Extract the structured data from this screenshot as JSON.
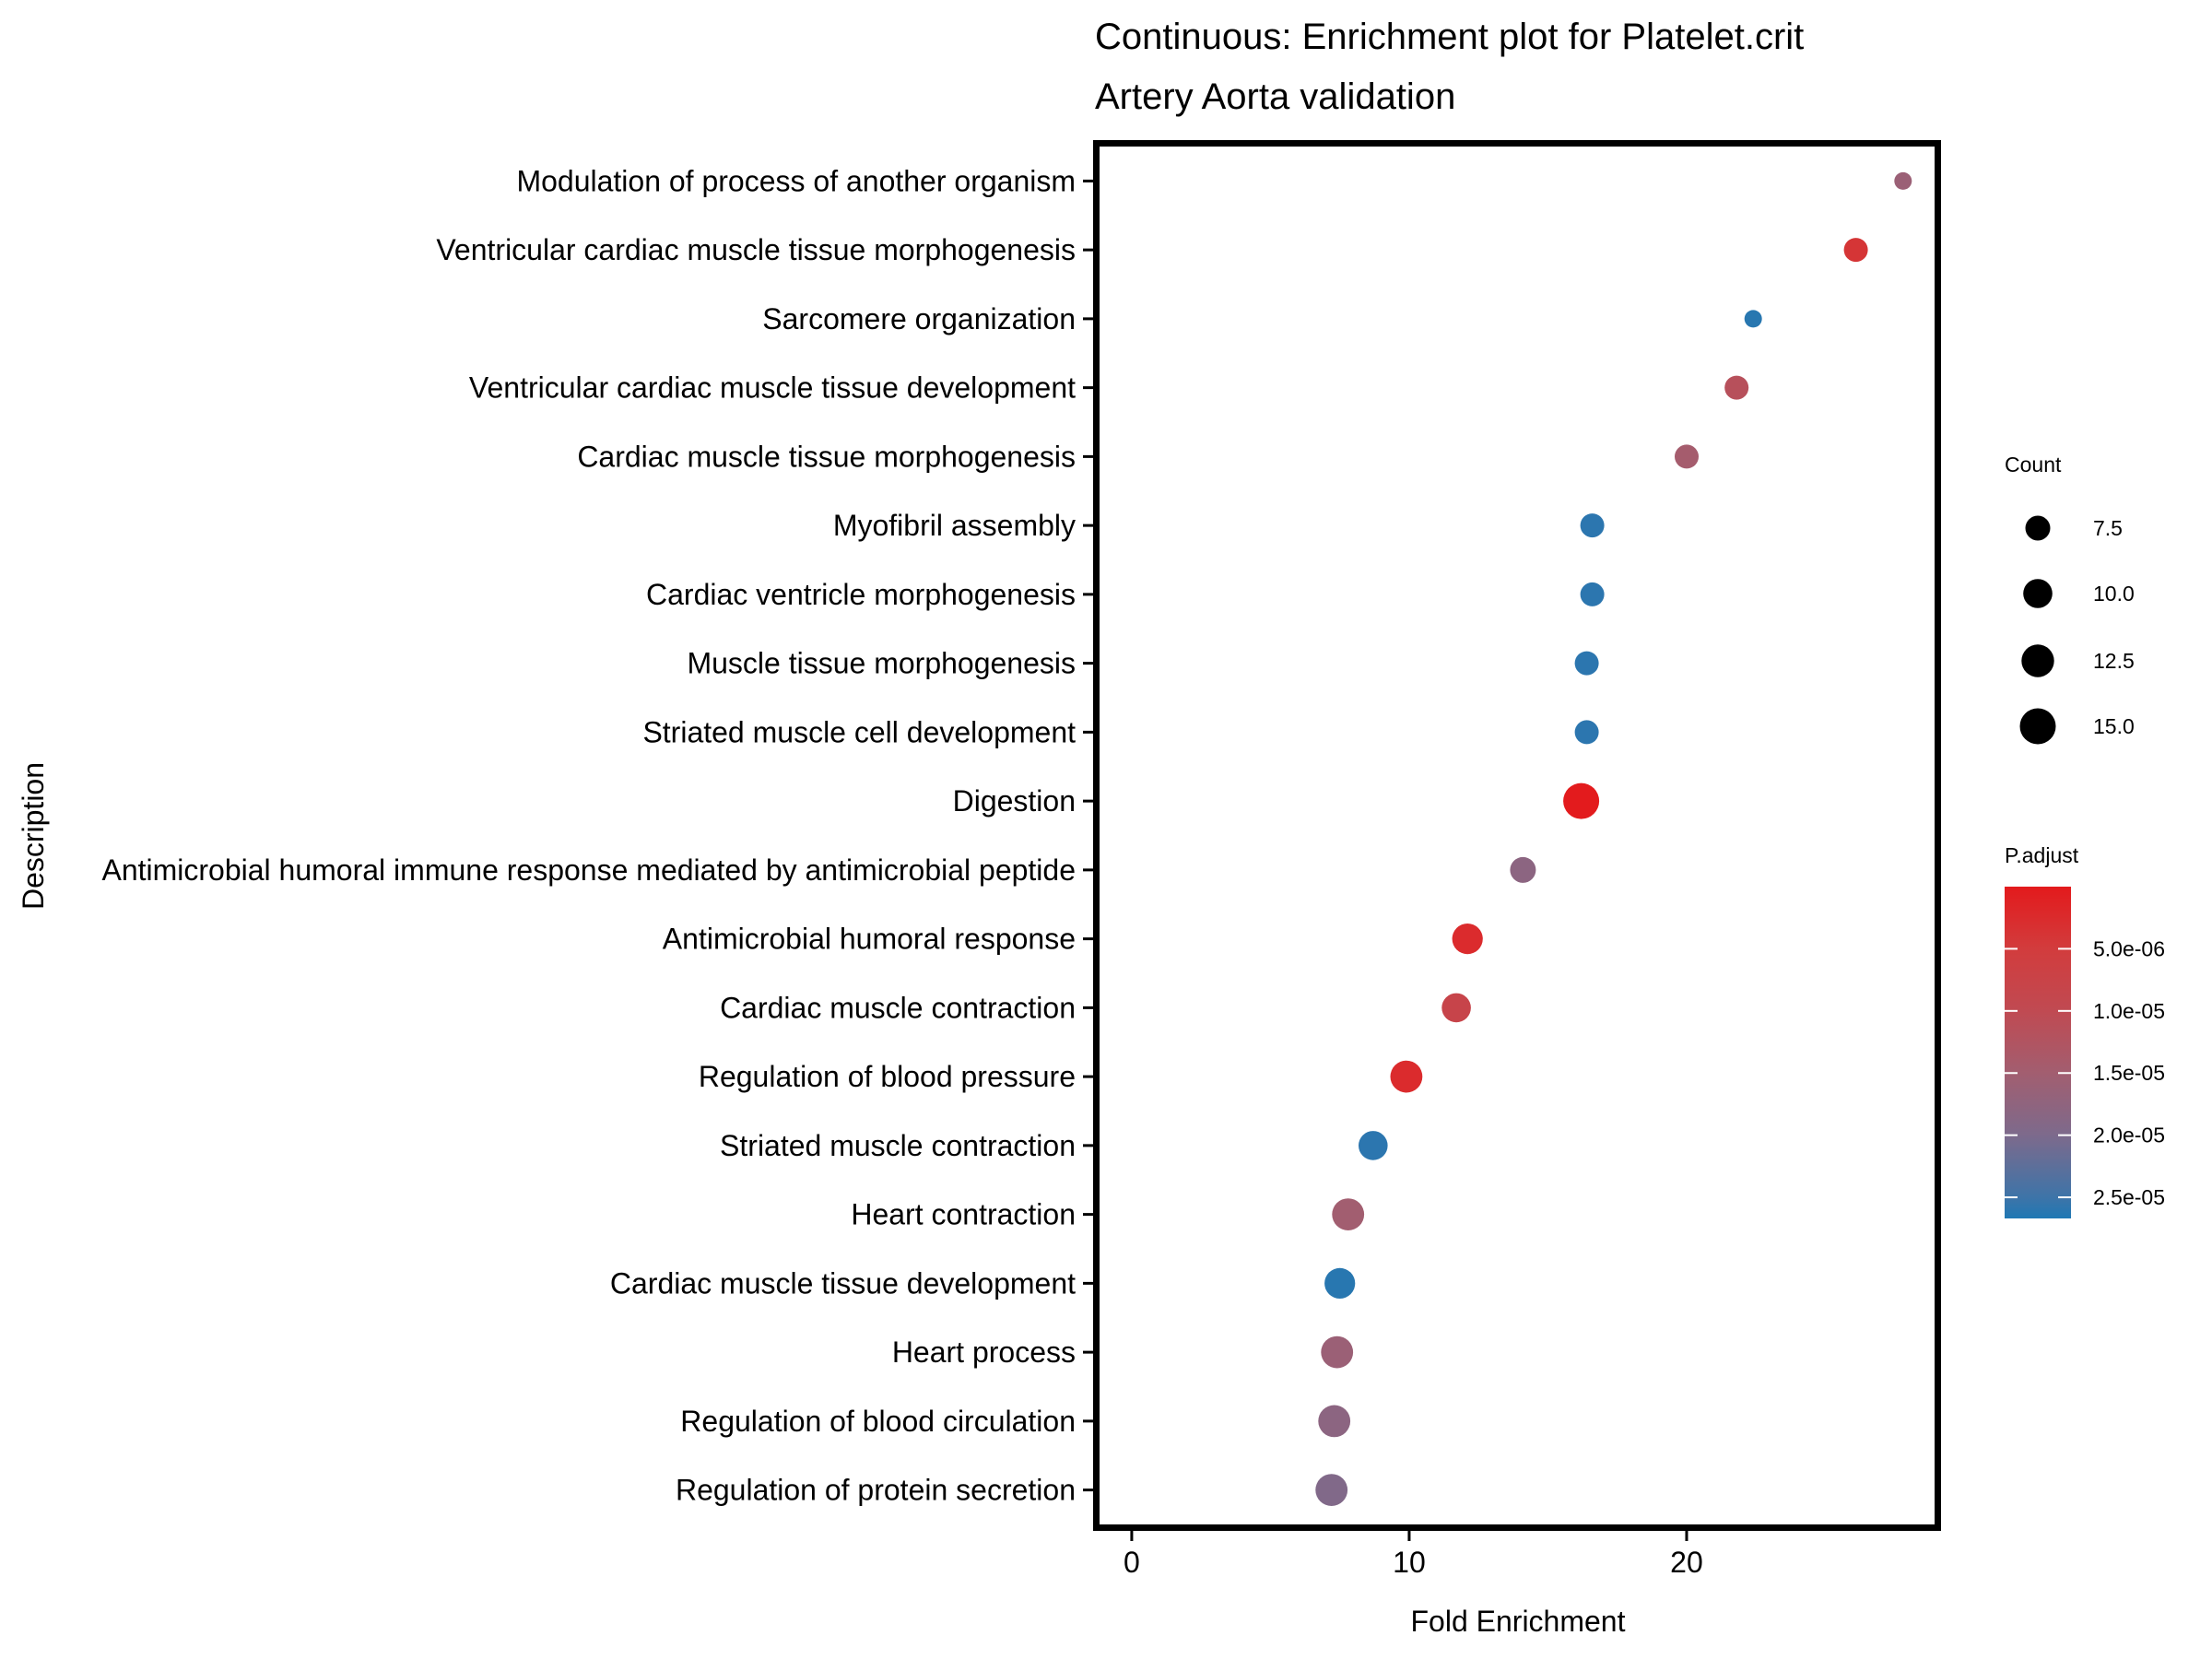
{
  "chart_data": {
    "type": "scatter",
    "title": "Continuous: Enrichment plot for Platelet.crit",
    "subtitle": "Artery Aorta validation",
    "xlabel": "Fold Enrichment",
    "ylabel": "Description",
    "xlim": [
      -1.16,
      28.97
    ],
    "x_ticks": [
      0,
      10,
      20
    ],
    "x_tick_labels": [
      "0",
      "10",
      "20"
    ],
    "grid": false,
    "categories": [
      "Modulation of process of another organism",
      "Ventricular cardiac muscle tissue morphogenesis",
      "Sarcomere organization",
      "Ventricular cardiac muscle tissue development",
      "Cardiac muscle tissue morphogenesis",
      "Myofibril assembly",
      "Cardiac ventricle morphogenesis",
      "Muscle tissue morphogenesis",
      "Striated muscle cell development",
      "Digestion",
      "Antimicrobial humoral immune response mediated by antimicrobial peptide",
      "Antimicrobial humoral response",
      "Cardiac muscle contraction",
      "Regulation of blood pressure",
      "Striated muscle contraction",
      "Heart contraction",
      "Cardiac muscle tissue development",
      "Heart process",
      "Regulation of blood circulation",
      "Regulation of protein secretion"
    ],
    "points": [
      {
        "description": "Modulation of process of another organism",
        "fold_enrichment": 27.8,
        "count": 4,
        "p_adjust": 1.6e-05
      },
      {
        "description": "Ventricular cardiac muscle tissue morphogenesis",
        "fold_enrichment": 26.1,
        "count": 7,
        "p_adjust": 4e-06
      },
      {
        "description": "Sarcomere organization",
        "fold_enrichment": 22.4,
        "count": 4,
        "p_adjust": 2.62e-05
      },
      {
        "description": "Ventricular cardiac muscle tissue development",
        "fold_enrichment": 21.8,
        "count": 7,
        "p_adjust": 1.15e-05
      },
      {
        "description": "Cardiac muscle tissue morphogenesis",
        "fold_enrichment": 20.0,
        "count": 7,
        "p_adjust": 1.45e-05
      },
      {
        "description": "Myofibril assembly",
        "fold_enrichment": 16.6,
        "count": 7,
        "p_adjust": 2.6e-05
      },
      {
        "description": "Cardiac ventricle morphogenesis",
        "fold_enrichment": 16.6,
        "count": 7,
        "p_adjust": 2.6e-05
      },
      {
        "description": "Muscle tissue morphogenesis",
        "fold_enrichment": 16.4,
        "count": 7,
        "p_adjust": 2.6e-05
      },
      {
        "description": "Striated muscle cell development",
        "fold_enrichment": 16.4,
        "count": 7,
        "p_adjust": 2.6e-05
      },
      {
        "description": "Digestion",
        "fold_enrichment": 16.2,
        "count": 15,
        "p_adjust": 1e-07
      },
      {
        "description": "Antimicrobial humoral immune response mediated by antimicrobial peptide",
        "fold_enrichment": 14.1,
        "count": 8,
        "p_adjust": 1.8e-05
      },
      {
        "description": "Antimicrobial humoral response",
        "fold_enrichment": 12.1,
        "count": 11,
        "p_adjust": 2.5e-06
      },
      {
        "description": "Cardiac muscle contraction",
        "fold_enrichment": 11.7,
        "count": 10,
        "p_adjust": 8e-06
      },
      {
        "description": "Regulation of blood pressure",
        "fold_enrichment": 9.9,
        "count": 12,
        "p_adjust": 2.5e-06
      },
      {
        "description": "Striated muscle contraction",
        "fold_enrichment": 8.7,
        "count": 10,
        "p_adjust": 2.6e-05
      },
      {
        "description": "Heart contraction",
        "fold_enrichment": 7.8,
        "count": 12,
        "p_adjust": 1.5e-05
      },
      {
        "description": "Cardiac muscle tissue development",
        "fold_enrichment": 7.5,
        "count": 11,
        "p_adjust": 2.62e-05
      },
      {
        "description": "Heart process",
        "fold_enrichment": 7.4,
        "count": 12,
        "p_adjust": 1.6e-05
      },
      {
        "description": "Regulation of blood circulation",
        "fold_enrichment": 7.3,
        "count": 12,
        "p_adjust": 1.8e-05
      },
      {
        "description": "Regulation of protein secretion",
        "fold_enrichment": 7.2,
        "count": 12,
        "p_adjust": 1.95e-05
      }
    ],
    "size_legend": {
      "title": "Count",
      "position": "right",
      "breaks": [
        7.5,
        10,
        12.5,
        15
      ],
      "labels": [
        "7.5",
        "10.0",
        "12.5",
        "15.0"
      ],
      "key_color": "#000000"
    },
    "color_legend": {
      "title": "P.adjust",
      "position": "right",
      "limits": [
        0,
        2.67e-05
      ],
      "breaks": [
        5e-06,
        1e-05,
        1.5e-05,
        2e-05,
        2.5e-05
      ],
      "labels": [
        "5.0e-06",
        "1.0e-05",
        "1.5e-05",
        "2.0e-05",
        "2.5e-05"
      ],
      "stops": [
        {
          "p": 0,
          "color": "#e31a1c"
        },
        {
          "p": 5e-06,
          "color": "#d23c3d"
        },
        {
          "p": 1e-05,
          "color": "#c04a52"
        },
        {
          "p": 1.5e-05,
          "color": "#a25e70"
        },
        {
          "p": 2e-05,
          "color": "#7d6a8c"
        },
        {
          "p": 2.5e-05,
          "color": "#3e74a8"
        },
        {
          "p": 2.67e-05,
          "color": "#1f78b4"
        }
      ]
    }
  }
}
